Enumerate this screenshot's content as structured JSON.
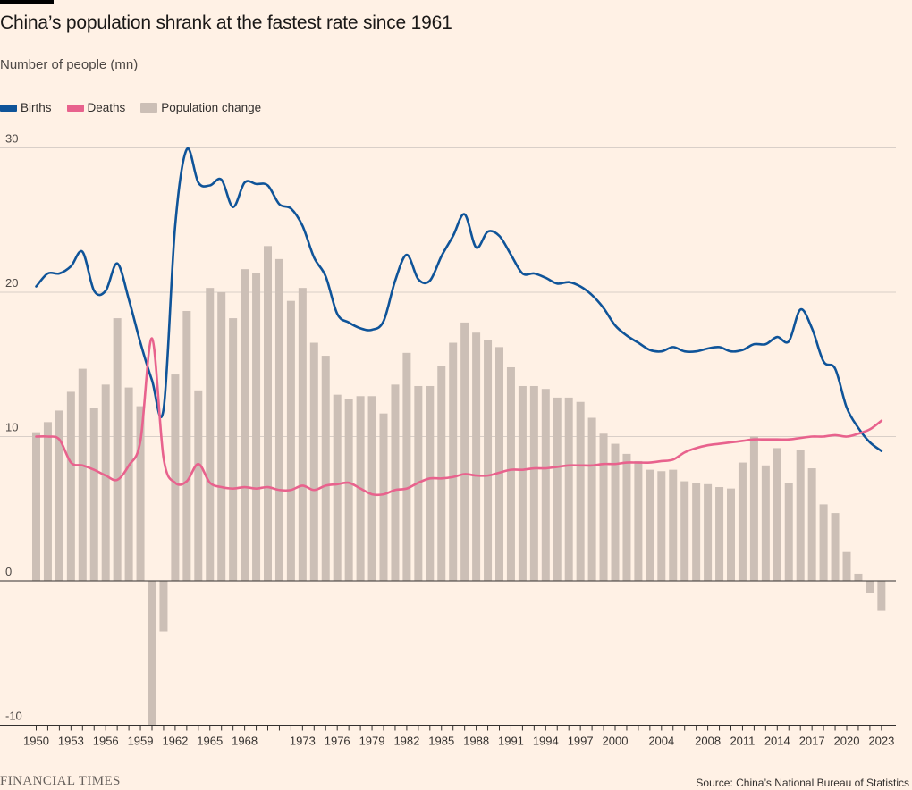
{
  "title": "China’s population shrank at the fastest rate since 1961",
  "subtitle": "Number of people (mn)",
  "legend": {
    "births": "Births",
    "deaths": "Deaths",
    "change": "Population change"
  },
  "colors": {
    "background": "#fff1e5",
    "births": "#0f5499",
    "deaths": "#e8628d",
    "bars": "#ccbfb6",
    "grid": "#d9cfc8"
  },
  "footer": {
    "logo": "FINANCIAL TIMES",
    "source": "Source: China’s National Bureau of Statistics"
  },
  "chart_data": {
    "type": "bar",
    "title": "China’s population shrank at the fastest rate since 1961",
    "ylabel": "Number of people (mn)",
    "ylim": [
      -10,
      30
    ],
    "yticks": [
      -10,
      0,
      10,
      20,
      30
    ],
    "xticks": [
      "1950",
      "1953",
      "1956",
      "1959",
      "1962",
      "1965",
      "1968",
      "1973",
      "1976",
      "1979",
      "1982",
      "1985",
      "1988",
      "1991",
      "1994",
      "1997",
      "2000",
      "2004",
      "2008",
      "2011",
      "2014",
      "2017",
      "2020",
      "2023"
    ],
    "x": [
      1950,
      1951,
      1952,
      1953,
      1954,
      1955,
      1956,
      1957,
      1958,
      1959,
      1960,
      1961,
      1962,
      1963,
      1964,
      1965,
      1966,
      1967,
      1968,
      1969,
      1970,
      1971,
      1972,
      1973,
      1974,
      1975,
      1976,
      1977,
      1978,
      1979,
      1980,
      1981,
      1982,
      1983,
      1984,
      1985,
      1986,
      1987,
      1988,
      1989,
      1990,
      1991,
      1992,
      1993,
      1994,
      1995,
      1996,
      1997,
      1998,
      1999,
      2000,
      2001,
      2002,
      2003,
      2004,
      2005,
      2006,
      2007,
      2008,
      2009,
      2010,
      2011,
      2012,
      2013,
      2014,
      2015,
      2016,
      2017,
      2018,
      2019,
      2020,
      2021,
      2022,
      2023
    ],
    "series": [
      {
        "name": "Population change",
        "type": "bar",
        "values": [
          10.3,
          11.0,
          11.8,
          13.1,
          14.7,
          12.0,
          13.6,
          18.2,
          13.4,
          12.1,
          -10.0,
          -3.5,
          14.3,
          18.7,
          13.2,
          20.3,
          20.0,
          18.2,
          21.6,
          21.3,
          23.2,
          22.3,
          19.4,
          20.3,
          16.5,
          15.6,
          12.9,
          12.6,
          12.8,
          12.8,
          11.6,
          13.6,
          15.8,
          13.5,
          13.5,
          14.9,
          16.5,
          17.9,
          17.2,
          16.7,
          16.2,
          14.8,
          13.5,
          13.5,
          13.3,
          12.7,
          12.7,
          12.4,
          11.3,
          10.2,
          9.5,
          8.8,
          8.3,
          7.7,
          7.6,
          7.7,
          6.9,
          6.8,
          6.7,
          6.5,
          6.4,
          8.2,
          10.0,
          8.0,
          9.2,
          6.8,
          9.1,
          7.8,
          5.3,
          4.7,
          2.0,
          0.5,
          -0.85,
          -2.08
        ]
      },
      {
        "name": "Births",
        "type": "line",
        "values": [
          20.4,
          21.3,
          21.3,
          21.8,
          22.8,
          20.1,
          20.1,
          22.0,
          19.5,
          16.5,
          13.9,
          11.9,
          24.6,
          29.9,
          27.6,
          27.4,
          27.8,
          25.9,
          27.6,
          27.5,
          27.4,
          26.1,
          25.8,
          24.6,
          22.4,
          21.1,
          18.5,
          17.9,
          17.5,
          17.4,
          18.0,
          20.8,
          22.6,
          20.9,
          20.8,
          22.5,
          23.9,
          25.4,
          23.1,
          24.2,
          23.9,
          22.6,
          21.3,
          21.3,
          21.0,
          20.6,
          20.7,
          20.4,
          19.8,
          18.9,
          17.7,
          17.0,
          16.5,
          16.0,
          15.9,
          16.2,
          15.9,
          15.9,
          16.1,
          16.2,
          15.9,
          16.0,
          16.4,
          16.4,
          16.9,
          16.6,
          18.8,
          17.5,
          15.2,
          14.7,
          12.0,
          10.6,
          9.6,
          9.0
        ]
      },
      {
        "name": "Deaths",
        "type": "line",
        "values": [
          10.0,
          10.0,
          9.8,
          8.2,
          8.0,
          7.7,
          7.3,
          7.0,
          8.0,
          9.7,
          16.8,
          8.5,
          6.8,
          6.9,
          8.1,
          6.8,
          6.5,
          6.4,
          6.5,
          6.4,
          6.5,
          6.3,
          6.3,
          6.6,
          6.3,
          6.6,
          6.7,
          6.8,
          6.4,
          6.0,
          6.0,
          6.3,
          6.4,
          6.8,
          7.1,
          7.1,
          7.2,
          7.4,
          7.3,
          7.3,
          7.5,
          7.7,
          7.7,
          7.8,
          7.8,
          7.9,
          8.0,
          8.0,
          8.0,
          8.1,
          8.1,
          8.2,
          8.2,
          8.2,
          8.3,
          8.4,
          8.9,
          9.2,
          9.4,
          9.5,
          9.6,
          9.7,
          9.8,
          9.8,
          9.8,
          9.8,
          9.9,
          10.0,
          10.0,
          10.1,
          10.0,
          10.2,
          10.5,
          11.1
        ]
      }
    ],
    "grid": true,
    "legend_position": "top-left"
  }
}
